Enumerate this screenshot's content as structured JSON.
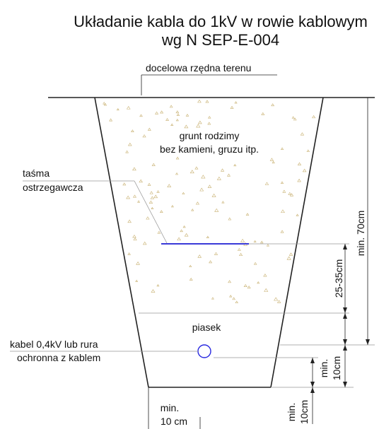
{
  "title": {
    "line1": "Układanie kabla do 1kV w rowie kablowym",
    "line2": "wg N SEP-E-004"
  },
  "labels": {
    "terrain": "docelowa rzędna terenu",
    "native_soil_1": "grunt rodzimy",
    "native_soil_2": "bez kamieni, gruzu itp.",
    "tape_1": "taśma",
    "tape_2": "ostrzegawcza",
    "sand": "piasek",
    "cable_1": "kabel 0,4kV lub rura",
    "cable_2": "ochronna z kablem"
  },
  "dimensions": {
    "depth_total": "min. 70cm",
    "tape_depth": "25-35cm",
    "cable_cover_1": "min.",
    "cable_cover_2": "10cm",
    "bottom_bed_1": "min.",
    "bottom_bed_2": "10cm",
    "side_clear_1": "min.",
    "side_clear_2": "10 cm"
  },
  "colors": {
    "tape": "#3a3ad8",
    "cable": "#2a2ae0",
    "soil_texture": "#c8b070",
    "lines": "#222222"
  }
}
